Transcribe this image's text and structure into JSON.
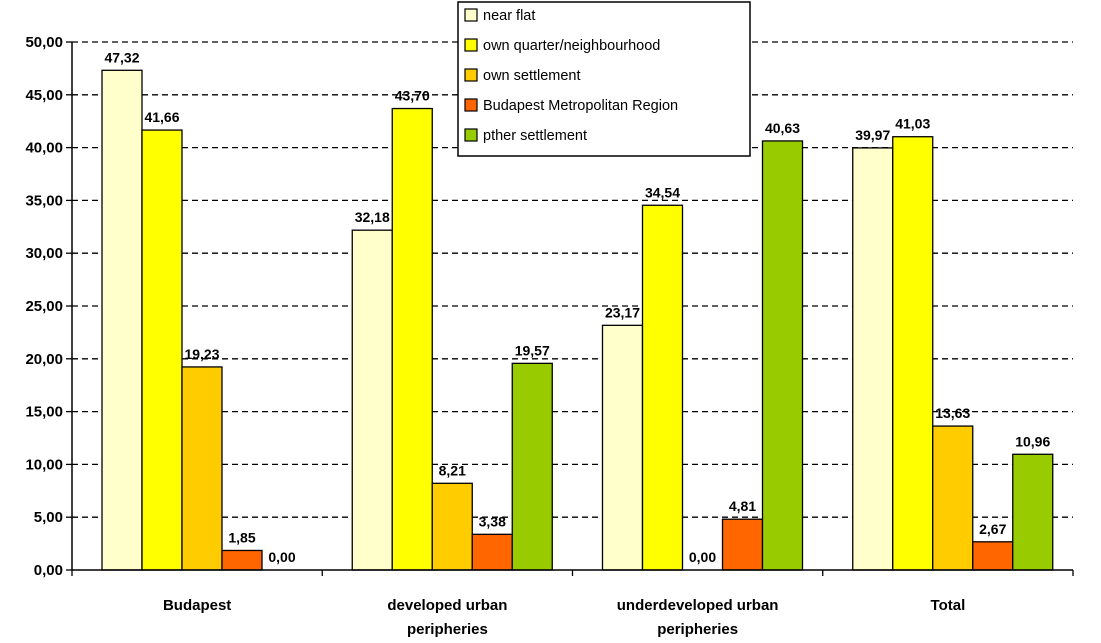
{
  "chart_data": {
    "type": "bar",
    "categories": [
      [
        "Budapest"
      ],
      [
        "developed urban",
        "peripheries"
      ],
      [
        "underdeveloped urban",
        "peripheries"
      ],
      [
        "Total"
      ]
    ],
    "series": [
      {
        "name": "near flat",
        "color": "#FFFFCC",
        "values": [
          47.32,
          32.18,
          23.17,
          39.97
        ],
        "labels": [
          "47,32",
          "32,18",
          "23,17",
          "39,97"
        ]
      },
      {
        "name": "own quarter/neighbourhood",
        "color": "#FFFF00",
        "values": [
          41.66,
          43.7,
          34.54,
          41.03
        ],
        "labels": [
          "41,66",
          "43,70",
          "34,54",
          "41,03"
        ]
      },
      {
        "name": "own settlement",
        "color": "#FFCC00",
        "values": [
          19.23,
          8.21,
          0.0,
          13.63
        ],
        "labels": [
          "19,23",
          "8,21",
          "0,00",
          "13,63"
        ]
      },
      {
        "name": "Budapest Metropolitan Region",
        "color": "#FF6600",
        "values": [
          1.85,
          3.38,
          4.81,
          2.67
        ],
        "labels": [
          "1,85",
          "3,38",
          "4,81",
          "2,67"
        ]
      },
      {
        "name": "pther settlement",
        "color": "#99CC00",
        "values": [
          0.0,
          19.57,
          40.63,
          10.96
        ],
        "labels": [
          "0,00",
          "19,57",
          "40,63",
          "10,96"
        ]
      }
    ],
    "ylim": [
      0,
      50
    ],
    "yticks": [
      "0,00",
      "5,00",
      "10,00",
      "15,00",
      "20,00",
      "25,00",
      "30,00",
      "35,00",
      "40,00",
      "45,00",
      "50,00"
    ],
    "grid": true,
    "legend_position": "top-center"
  }
}
